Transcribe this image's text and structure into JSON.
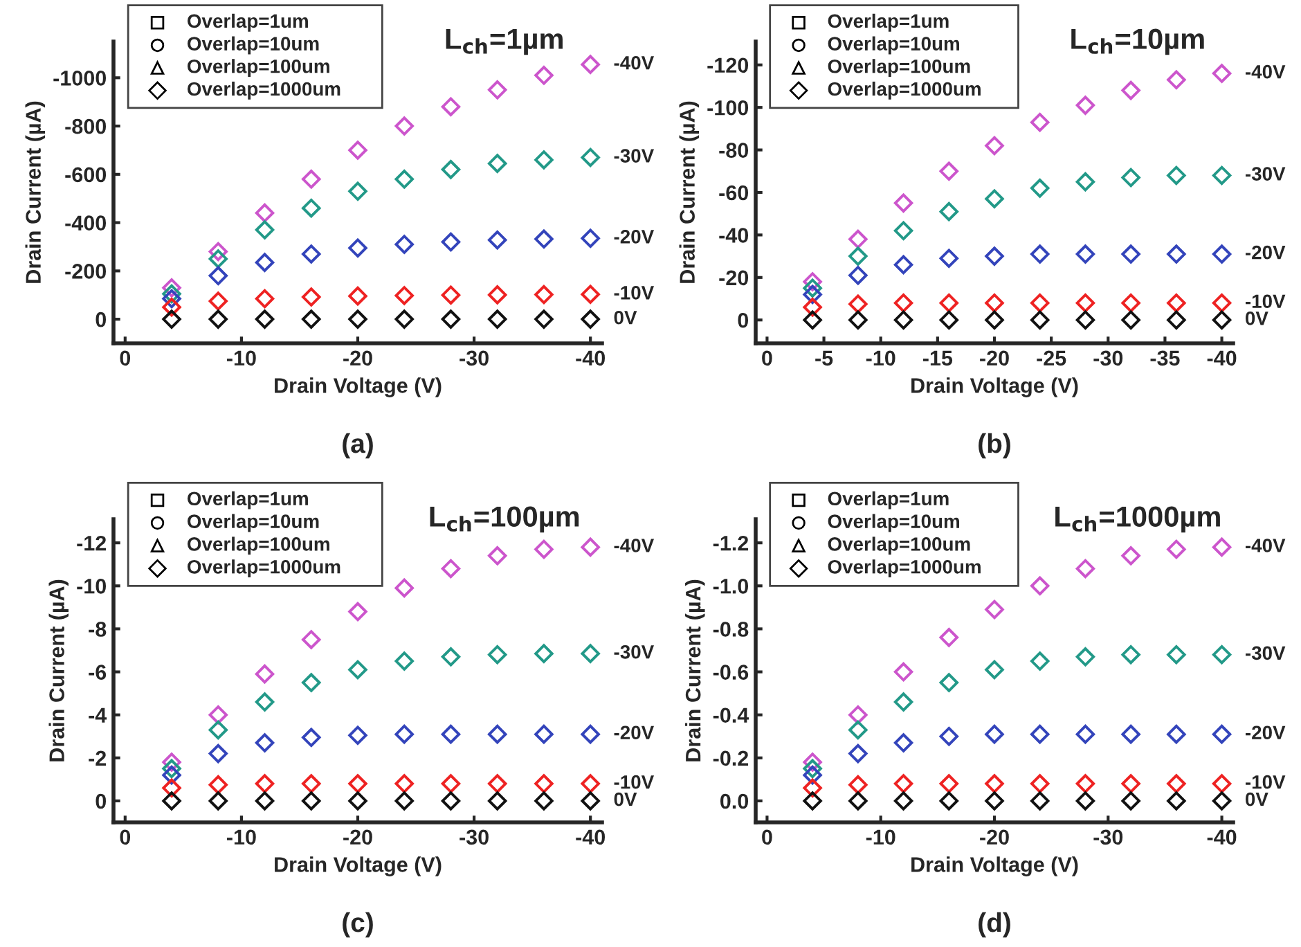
{
  "chart_data": [
    {
      "type": "scatter",
      "title": "L$_{ch}$=1µm",
      "xlabel": "Drain Voltage (V)",
      "ylabel": "Drain Current (µA)",
      "marker": "diamond",
      "grid": false,
      "x": [
        -4,
        -8,
        -12,
        -16,
        -20,
        -24,
        -28,
        -32,
        -36,
        -40
      ],
      "xlim": [
        1,
        -41
      ],
      "xticks": [
        0,
        -10,
        -20,
        -30,
        -40
      ],
      "ylim": [
        100,
        -1150
      ],
      "yticks": [
        0,
        -200,
        -400,
        -600,
        -800,
        -1000
      ],
      "series": [
        {
          "name": "-40V",
          "color": "#cc55cc",
          "values": [
            -130,
            -280,
            -440,
            -580,
            -700,
            -800,
            -880,
            -950,
            -1010,
            -1055
          ]
        },
        {
          "name": "-30V",
          "color": "#229988",
          "values": [
            -105,
            -250,
            -370,
            -460,
            -530,
            -580,
            -620,
            -645,
            -660,
            -670
          ]
        },
        {
          "name": "-20V",
          "color": "#3344bb",
          "values": [
            -85,
            -180,
            -235,
            -270,
            -295,
            -310,
            -320,
            -328,
            -332,
            -335
          ]
        },
        {
          "name": "-10V",
          "color": "#ee2222",
          "values": [
            -50,
            -75,
            -85,
            -92,
            -96,
            -98,
            -100,
            -101,
            -102,
            -103
          ]
        },
        {
          "name": "0V",
          "color": "#111111",
          "values": [
            0,
            0,
            0,
            0,
            0,
            0,
            0,
            0,
            0,
            0
          ]
        }
      ],
      "annotations": [
        "Overlap=1um",
        "Overlap=10um",
        "Overlap=100um",
        "Overlap=1000um",
        "(a)"
      ]
    },
    {
      "type": "scatter",
      "title": "L$_{ch}$=10µm",
      "xlabel": "Drain Voltage (V)",
      "ylabel": "Drain Current (µA)",
      "marker": "diamond",
      "grid": false,
      "x": [
        -4,
        -8,
        -12,
        -16,
        -20,
        -24,
        -28,
        -32,
        -36,
        -40
      ],
      "xlim": [
        1,
        -41
      ],
      "xticks": [
        0,
        -5,
        -10,
        -15,
        -20,
        -25,
        -30,
        -35,
        -40
      ],
      "ylim": [
        11,
        -131
      ],
      "yticks": [
        0,
        -20,
        -40,
        -60,
        -80,
        -100,
        -120
      ],
      "series": [
        {
          "name": "-40V",
          "color": "#cc55cc",
          "values": [
            -18,
            -38,
            -55,
            -70,
            -82,
            -93,
            -101,
            -108,
            -113,
            -116
          ]
        },
        {
          "name": "-30V",
          "color": "#229988",
          "values": [
            -15,
            -30,
            -42,
            -51,
            -57,
            -62,
            -65,
            -67,
            -68,
            -68
          ]
        },
        {
          "name": "-20V",
          "color": "#3344bb",
          "values": [
            -12,
            -21,
            -26,
            -29,
            -30,
            -31,
            -31,
            -31,
            -31,
            -31
          ]
        },
        {
          "name": "-10V",
          "color": "#ee2222",
          "values": [
            -6,
            -7.5,
            -8,
            -8,
            -8,
            -8,
            -8,
            -8,
            -8,
            -8
          ]
        },
        {
          "name": "0V",
          "color": "#111111",
          "values": [
            0,
            0,
            0,
            0,
            0,
            0,
            0,
            0,
            0,
            0
          ]
        }
      ],
      "annotations": [
        "Overlap=1um",
        "Overlap=10um",
        "Overlap=100um",
        "Overlap=1000um",
        "(b)"
      ]
    },
    {
      "type": "scatter",
      "title": "L$_{ch}$=100µm",
      "xlabel": "Drain Voltage (V)",
      "ylabel": "Drain Current (µA)",
      "marker": "diamond",
      "grid": false,
      "x": [
        -4,
        -8,
        -12,
        -16,
        -20,
        -24,
        -28,
        -32,
        -36,
        -40
      ],
      "xlim": [
        1,
        -41
      ],
      "xticks": [
        0,
        -10,
        -20,
        -30,
        -40
      ],
      "ylim": [
        1,
        -13.1
      ],
      "yticks": [
        0,
        -2,
        -4,
        -6,
        -8,
        -10,
        -12
      ],
      "series": [
        {
          "name": "-40V",
          "color": "#cc55cc",
          "values": [
            -1.8,
            -4,
            -5.9,
            -7.5,
            -8.8,
            -9.9,
            -10.8,
            -11.4,
            -11.7,
            -11.8
          ]
        },
        {
          "name": "-30V",
          "color": "#229988",
          "values": [
            -1.5,
            -3.3,
            -4.6,
            -5.5,
            -6.1,
            -6.5,
            -6.7,
            -6.8,
            -6.85,
            -6.85
          ]
        },
        {
          "name": "-20V",
          "color": "#3344bb",
          "values": [
            -1.2,
            -2.2,
            -2.7,
            -2.95,
            -3.05,
            -3.1,
            -3.1,
            -3.1,
            -3.1,
            -3.1
          ]
        },
        {
          "name": "-10V",
          "color": "#ee2222",
          "values": [
            -0.6,
            -0.75,
            -0.8,
            -0.8,
            -0.8,
            -0.8,
            -0.8,
            -0.8,
            -0.8,
            -0.8
          ]
        },
        {
          "name": "0V",
          "color": "#111111",
          "values": [
            0,
            0,
            0,
            0,
            0,
            0,
            0,
            0,
            0,
            0
          ]
        }
      ],
      "annotations": [
        "Overlap=1um",
        "Overlap=10um",
        "Overlap=100um",
        "Overlap=1000um",
        "(c)"
      ]
    },
    {
      "type": "scatter",
      "title": "L$_{ch}$=1000µm",
      "xlabel": "Drain Voltage (V)",
      "ylabel": "Drain Current (µA)",
      "marker": "diamond",
      "grid": false,
      "x": [
        -4,
        -8,
        -12,
        -16,
        -20,
        -24,
        -28,
        -32,
        -36,
        -40
      ],
      "xlim": [
        1,
        -41
      ],
      "xticks": [
        0,
        -10,
        -20,
        -30,
        -40
      ],
      "ylim": [
        0.1,
        -1.31
      ],
      "yticks": [
        {
          "value": 0,
          "label": "0.0"
        },
        {
          "value": -0.2,
          "label": "-0.2"
        },
        {
          "value": -0.4,
          "label": "-0.4"
        },
        {
          "value": -0.6,
          "label": "-0.6"
        },
        {
          "value": -0.8,
          "label": "-0.8"
        },
        {
          "value": -1,
          "label": "-1.0"
        },
        {
          "value": -1.2,
          "label": "-1.2"
        }
      ],
      "series": [
        {
          "name": "-40V",
          "color": "#cc55cc",
          "values": [
            -0.18,
            -0.4,
            -0.6,
            -0.76,
            -0.89,
            -1,
            -1.08,
            -1.14,
            -1.17,
            -1.18
          ]
        },
        {
          "name": "-30V",
          "color": "#229988",
          "values": [
            -0.15,
            -0.33,
            -0.46,
            -0.55,
            -0.61,
            -0.65,
            -0.67,
            -0.68,
            -0.68,
            -0.68
          ]
        },
        {
          "name": "-20V",
          "color": "#3344bb",
          "values": [
            -0.12,
            -0.22,
            -0.27,
            -0.3,
            -0.31,
            -0.31,
            -0.31,
            -0.31,
            -0.31,
            -0.31
          ]
        },
        {
          "name": "-10V",
          "color": "#ee2222",
          "values": [
            -0.06,
            -0.075,
            -0.08,
            -0.08,
            -0.08,
            -0.08,
            -0.08,
            -0.08,
            -0.08,
            -0.08
          ]
        },
        {
          "name": "0V",
          "color": "#111111",
          "values": [
            0,
            0,
            0,
            0,
            0,
            0,
            0,
            0,
            0,
            0
          ]
        }
      ],
      "annotations": [
        "Overlap=1um",
        "Overlap=10um",
        "Overlap=100um",
        "Overlap=1000um",
        "(d)"
      ]
    }
  ]
}
